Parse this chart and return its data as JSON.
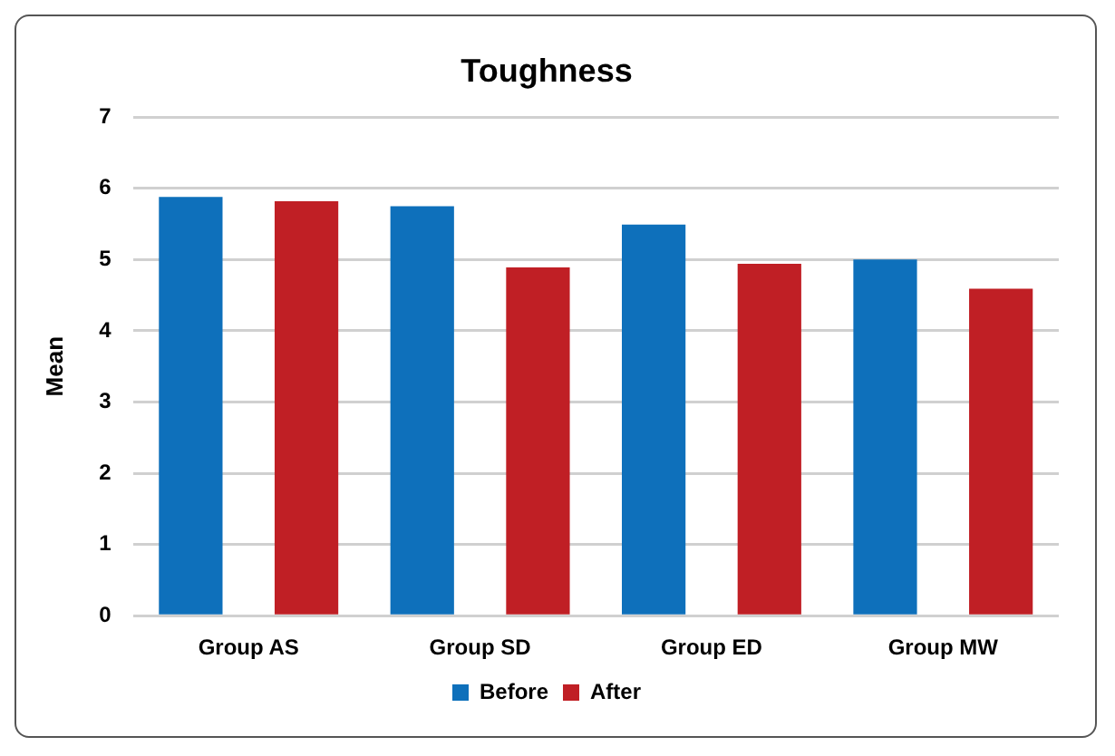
{
  "chart_data": {
    "type": "bar",
    "title": "Toughness",
    "ylabel": "Mean",
    "categories": [
      "Group AS",
      "Group SD",
      "Group ED",
      "Group MW"
    ],
    "series": [
      {
        "name": "Before",
        "color": "#0e70bb",
        "values": [
          5.88,
          5.75,
          5.49,
          5.0
        ]
      },
      {
        "name": "After",
        "color": "#c01f25",
        "values": [
          5.82,
          4.89,
          4.94,
          4.59
        ]
      }
    ],
    "ylim": [
      0,
      7
    ],
    "yticks": [
      0,
      1,
      2,
      3,
      4,
      5,
      6,
      7
    ],
    "grid": "y",
    "legend": "bottom"
  }
}
